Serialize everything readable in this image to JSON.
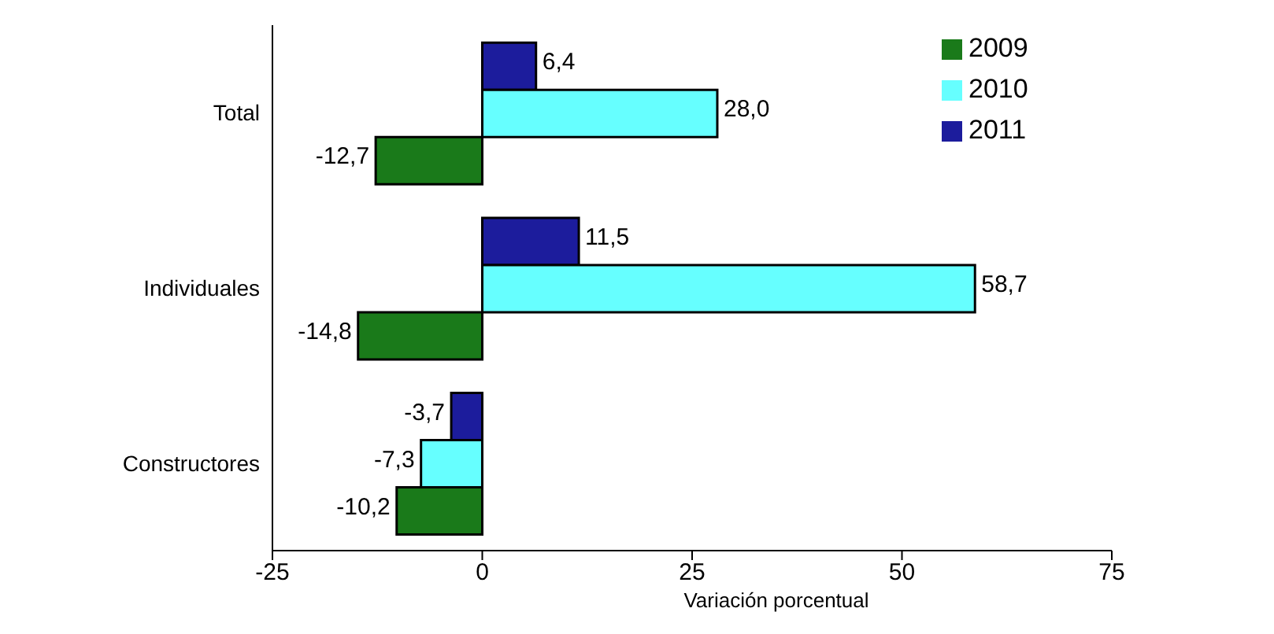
{
  "chart_data": {
    "type": "bar",
    "orientation": "horizontal",
    "xlabel": "Variación porcentual",
    "categories": [
      "Total",
      "Individuales",
      "Constructores"
    ],
    "series": [
      {
        "name": "2011",
        "color": "#1c1c9c",
        "values": [
          6.4,
          11.5,
          -3.7
        ],
        "value_labels": [
          "6,4",
          "11,5",
          "-3,7"
        ]
      },
      {
        "name": "2010",
        "color": "#66ffff",
        "values": [
          28.0,
          58.7,
          -7.3
        ],
        "value_labels": [
          "28,0",
          "58,7",
          "-7,3"
        ]
      },
      {
        "name": "2009",
        "color": "#1a7a1a",
        "values": [
          -12.7,
          -14.8,
          -10.2
        ],
        "value_labels": [
          "-12,7",
          "-14,8",
          "-10,2"
        ]
      }
    ],
    "xlim": [
      -25,
      75
    ],
    "xticks": [
      -25,
      0,
      25,
      50,
      75
    ],
    "legend": "top right"
  }
}
